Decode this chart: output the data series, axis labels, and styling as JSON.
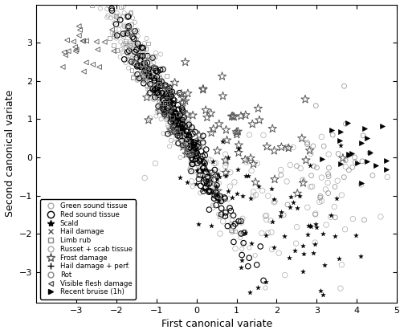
{
  "xlabel": "First canonical variate",
  "ylabel": "Second canonical variate",
  "xlim": [
    -4,
    5
  ],
  "ylim": [
    -3.8,
    4
  ],
  "xticks": [
    -3,
    -2,
    -1,
    0,
    1,
    2,
    3,
    4,
    5
  ],
  "yticks": [
    -3,
    -2,
    -1,
    0,
    1,
    2,
    3
  ],
  "seed": 42
}
